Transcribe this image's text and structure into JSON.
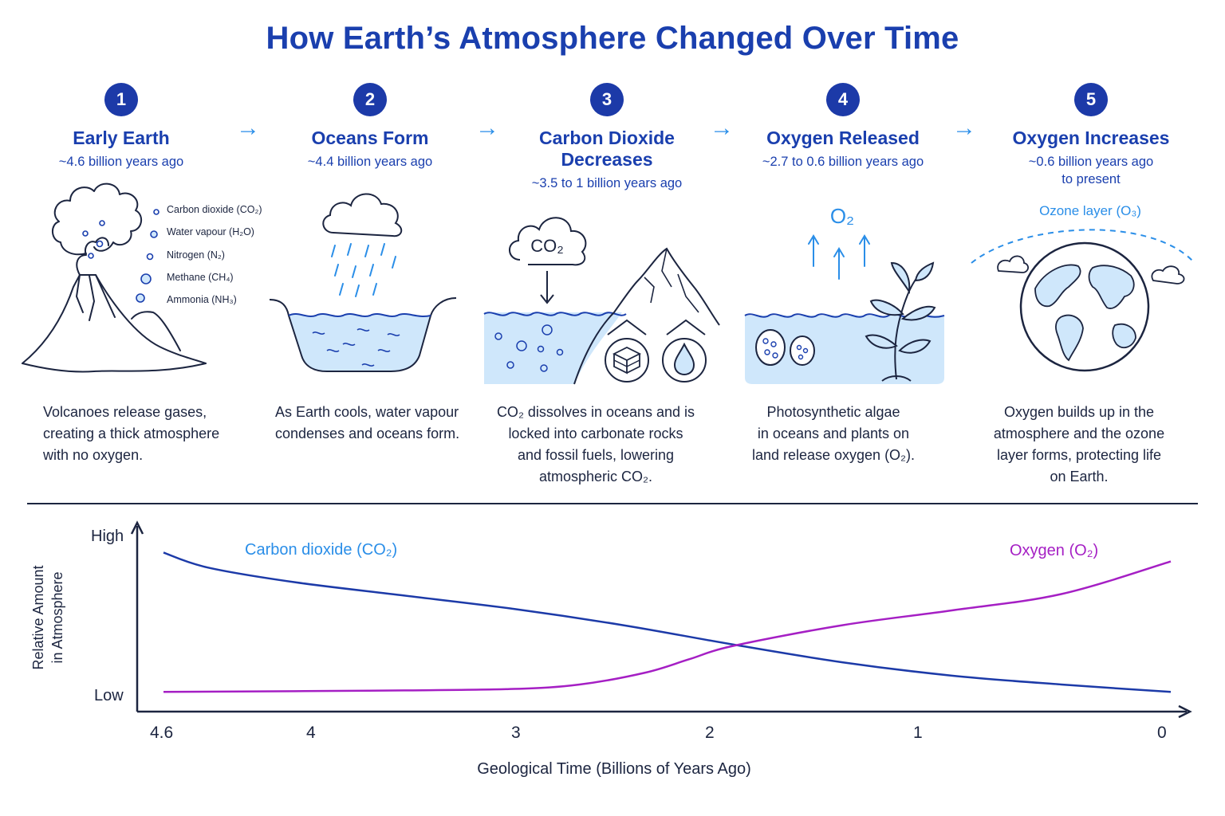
{
  "title": "How Earth’s Atmosphere Changed Over Time",
  "steps": [
    {
      "number": "1",
      "title": "Early Earth",
      "time": "~4.6 billion years ago",
      "description": "Volcanoes release gases,\ncreating a thick atmosphere\nwith no oxygen."
    },
    {
      "number": "2",
      "title": "Oceans Form",
      "time": "~4.4 billion years ago",
      "description": "As Earth cools, water vapour\ncondenses and oceans form."
    },
    {
      "number": "3",
      "title": "Carbon Dioxide\nDecreases",
      "time": "~3.5 to 1 billion years ago",
      "description": "CO₂ dissolves in oceans and is\nlocked into carbonate rocks\nand fossil fuels, lowering\natmospheric CO₂."
    },
    {
      "number": "4",
      "title": "Oxygen Released",
      "time": "~2.7 to 0.6 billion years ago",
      "description": "Photosynthetic algae\nin oceans and plants on\nland release oxygen (O₂)."
    },
    {
      "number": "5",
      "title": "Oxygen Increases",
      "time": "~0.6 billion years ago\nto present",
      "description": "Oxygen builds up in the\natmosphere and the ozone\nlayer forms, protecting life\non Earth."
    }
  ],
  "gases": [
    "Carbon dioxide (CO₂)",
    "Water vapour (H₂O)",
    "Nitrogen (N₂)",
    "Methane (CH₄)",
    "Ammonia (NH₃)"
  ],
  "icon_labels": {
    "co2_cloud": "CO₂",
    "o2": "O₂",
    "ozone": "Ozone layer (O₃)"
  },
  "colors": {
    "accent": "#1a3fae",
    "light_blue": "#2a8ee8",
    "water": "#cfe7fb",
    "co2_line": "#1c3aa8",
    "o2_line": "#a51fc4"
  },
  "chart_data": {
    "type": "line",
    "xlabel": "Geological Time (Billions of Years Ago)",
    "ylabel": "Relative Amount\nin Atmosphere",
    "x_ticks": [
      "4.6",
      "4",
      "3",
      "2",
      "1",
      "0"
    ],
    "y_ticks": [
      "High",
      "Low"
    ],
    "xlim": [
      4.6,
      0
    ],
    "ylim": [
      0,
      1
    ],
    "series": [
      {
        "name": "Carbon dioxide (CO₂)",
        "color": "#1c3aa8",
        "x": [
          4.6,
          4.4,
          4.0,
          3.5,
          3.0,
          2.5,
          2.0,
          1.5,
          1.0,
          0.5,
          0.0
        ],
        "y": [
          0.96,
          0.86,
          0.76,
          0.67,
          0.58,
          0.47,
          0.34,
          0.22,
          0.13,
          0.07,
          0.02
        ]
      },
      {
        "name": "Oxygen (O₂)",
        "color": "#a51fc4",
        "x": [
          4.6,
          4.0,
          3.5,
          3.0,
          2.7,
          2.4,
          2.2,
          2.0,
          1.5,
          1.0,
          0.5,
          0.0
        ],
        "y": [
          0.02,
          0.025,
          0.03,
          0.04,
          0.07,
          0.15,
          0.24,
          0.33,
          0.47,
          0.57,
          0.68,
          0.9
        ]
      }
    ]
  }
}
